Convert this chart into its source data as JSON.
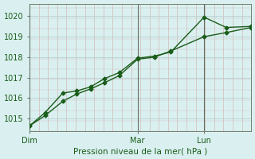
{
  "xlabel": "Pression niveau de la mer( hPa )",
  "bg_color": "#daf0f0",
  "grid_color_major": "#c8dede",
  "grid_color_minor": "#e8c8c8",
  "line_color": "#1a5c1a",
  "xlim": [
    0,
    4.0
  ],
  "ylim": [
    1014.4,
    1020.6
  ],
  "yticks": [
    1015,
    1016,
    1017,
    1018,
    1019,
    1020
  ],
  "xtick_labels": [
    "Dim",
    "Mar",
    "Lun"
  ],
  "xtick_positions": [
    0.0,
    1.95,
    3.15
  ],
  "vline_positions": [
    0.0,
    1.95,
    3.15
  ],
  "series1_x": [
    0.0,
    0.28,
    0.6,
    0.85,
    1.1,
    1.35,
    1.62,
    1.95,
    2.25,
    2.55,
    3.15,
    3.55,
    4.0
  ],
  "series1_y": [
    1014.65,
    1015.3,
    1016.25,
    1016.35,
    1016.55,
    1016.95,
    1017.25,
    1017.95,
    1018.05,
    1018.25,
    1019.95,
    1019.45,
    1019.5
  ],
  "series2_x": [
    0.0,
    0.28,
    0.6,
    0.85,
    1.1,
    1.35,
    1.62,
    1.95,
    2.25,
    2.55,
    3.15,
    3.55,
    4.0
  ],
  "series2_y": [
    1014.65,
    1015.15,
    1015.85,
    1016.2,
    1016.45,
    1016.75,
    1017.1,
    1017.9,
    1018.0,
    1018.3,
    1019.0,
    1019.2,
    1019.45
  ],
  "marker_size": 2.5,
  "linewidth": 1.0
}
